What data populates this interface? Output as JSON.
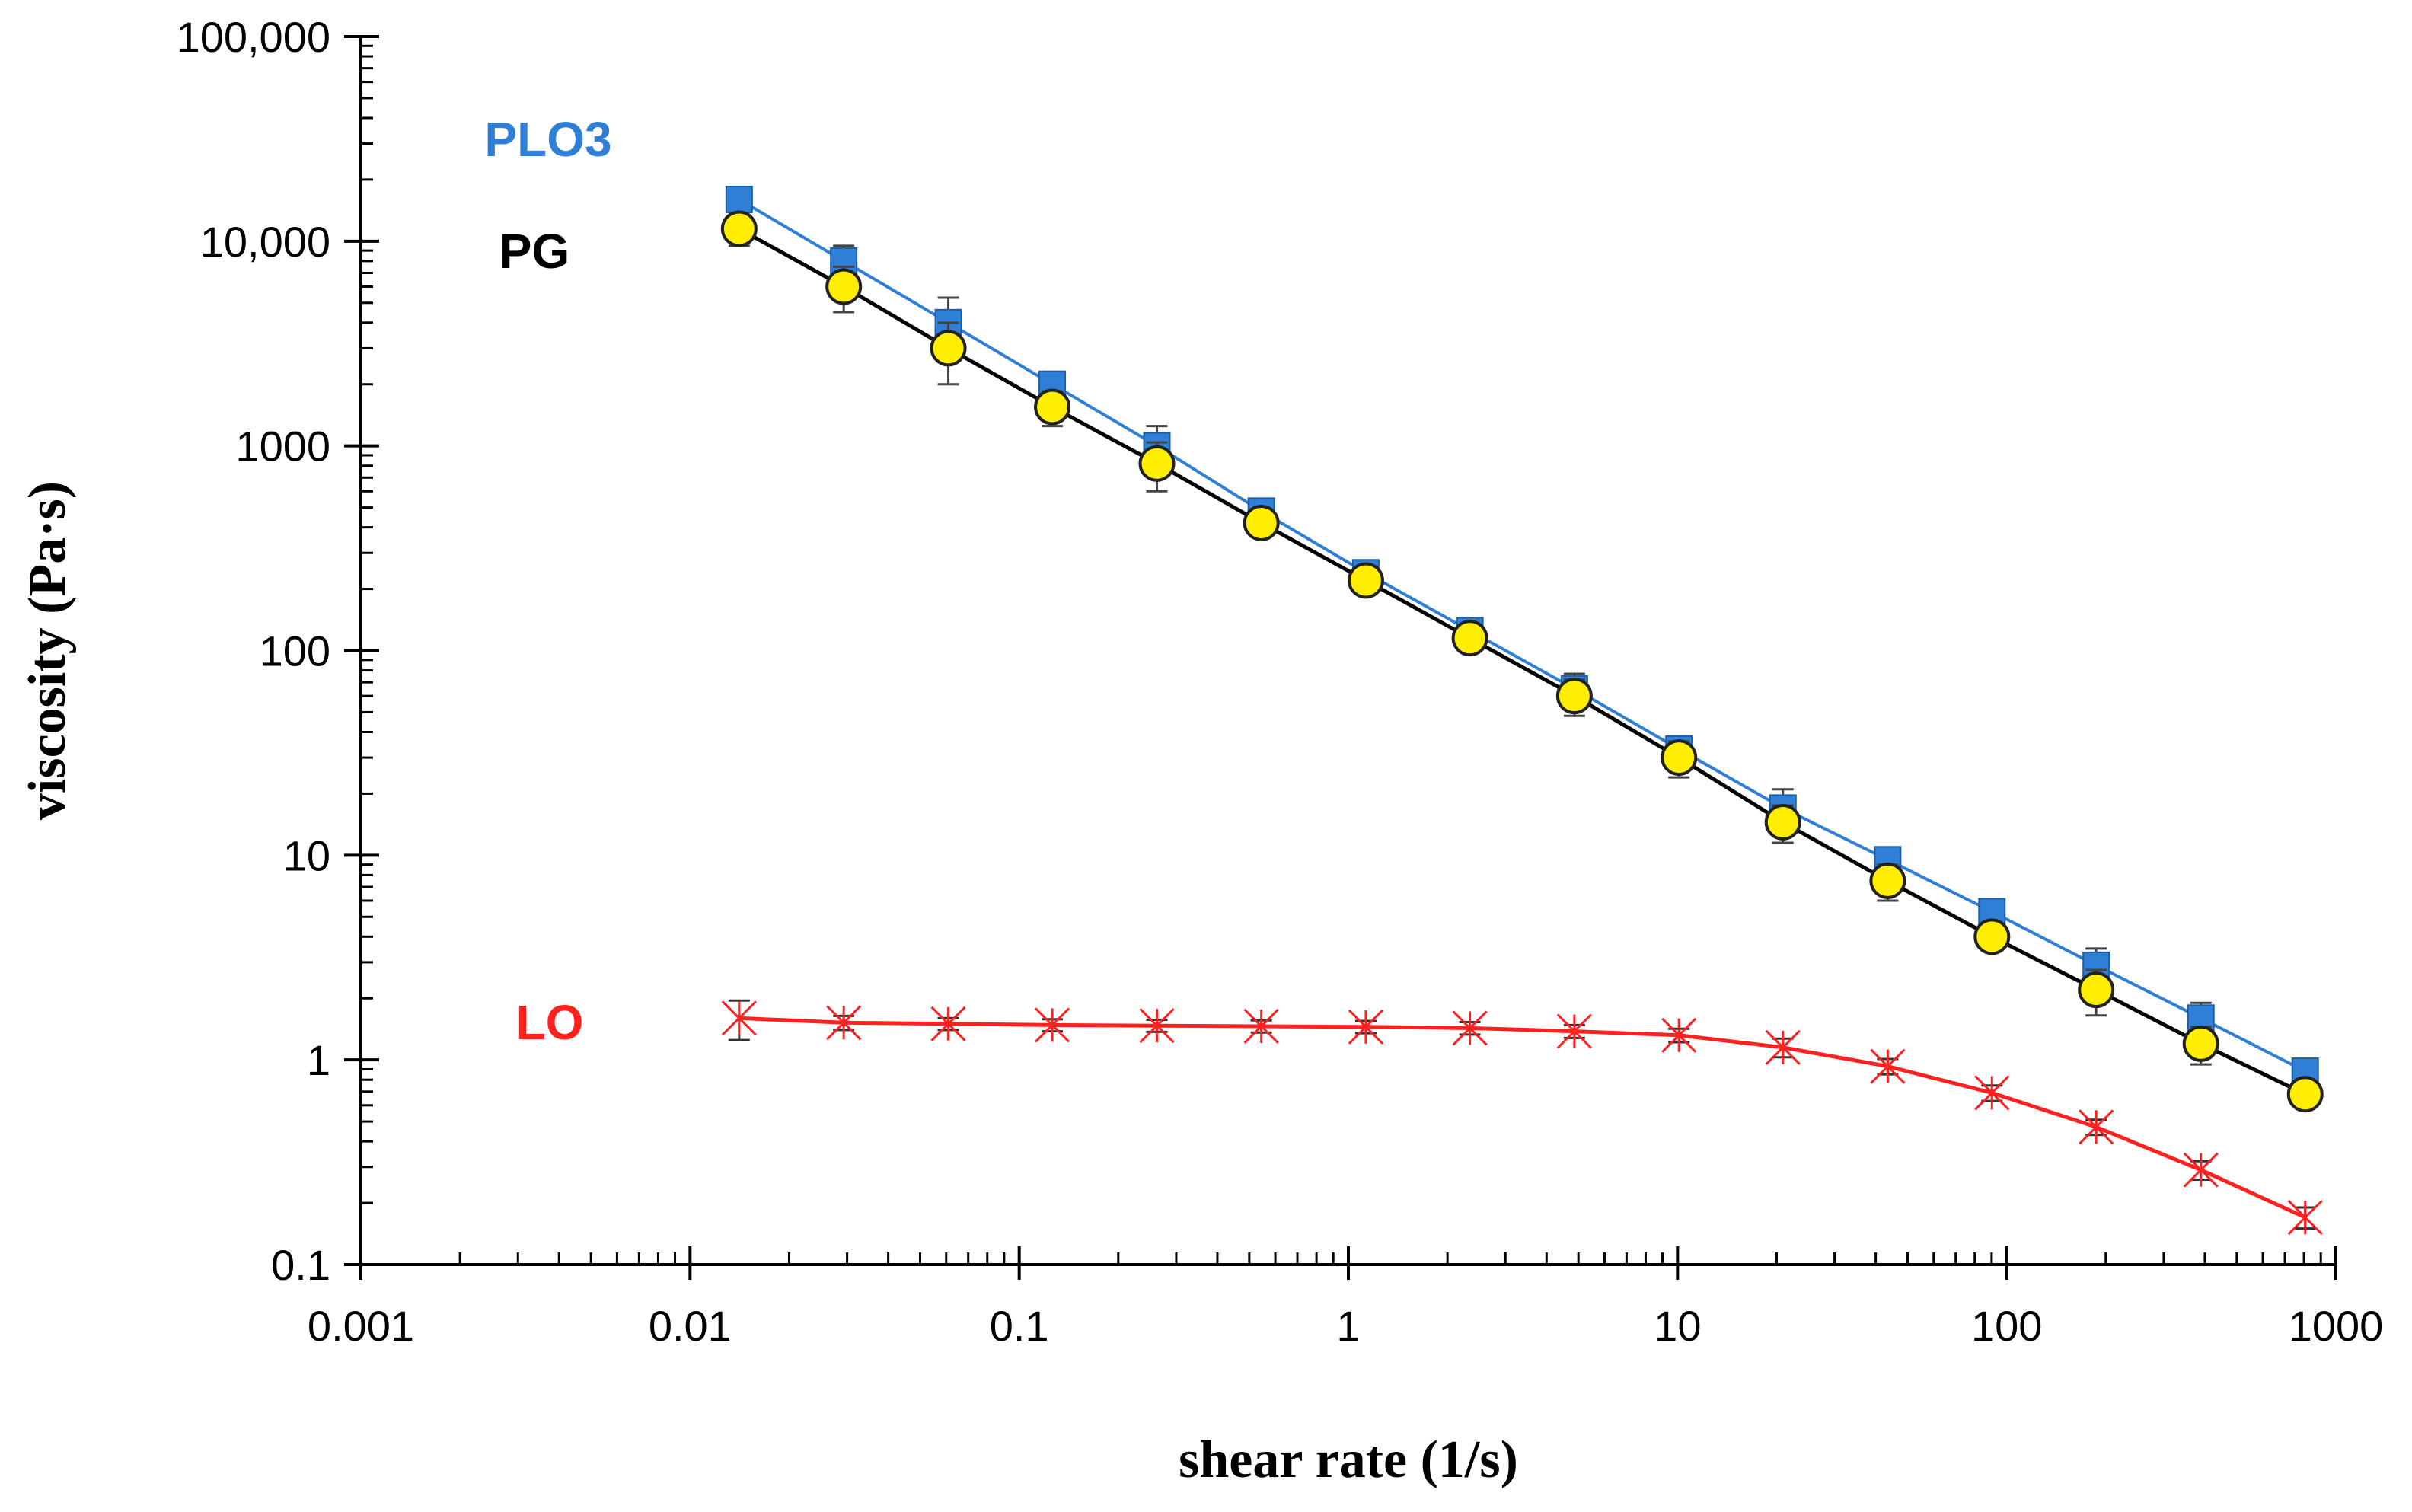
{
  "chart_data": {
    "type": "line",
    "title": "",
    "xlabel": "shear rate (1/s)",
    "ylabel": "viscosity (Pa·s)",
    "xscale": "log",
    "yscale": "log",
    "xlim": [
      0.001,
      1000
    ],
    "ylim": [
      0.1,
      100000
    ],
    "grid": false,
    "xticks": [
      {
        "value": 0.001,
        "label": "0.001"
      },
      {
        "value": 0.01,
        "label": "0.01"
      },
      {
        "value": 0.1,
        "label": "0.1"
      },
      {
        "value": 1,
        "label": "1"
      },
      {
        "value": 10,
        "label": "10"
      },
      {
        "value": 100,
        "label": "100"
      },
      {
        "value": 1000,
        "label": "1000"
      }
    ],
    "yticks": [
      {
        "value": 0.1,
        "label": "0.1"
      },
      {
        "value": 1,
        "label": "1"
      },
      {
        "value": 10,
        "label": "10"
      },
      {
        "value": 100,
        "label": "100"
      },
      {
        "value": 1000,
        "label": "1000"
      },
      {
        "value": 10000,
        "label": "10,000"
      },
      {
        "value": 100000,
        "label": "100,000"
      }
    ],
    "x": [
      0.0141,
      0.0293,
      0.0609,
      0.126,
      0.262,
      0.544,
      1.13,
      2.34,
      4.86,
      10.1,
      20.9,
      43.5,
      90.2,
      187,
      389,
      807
    ],
    "series": [
      {
        "name": "PLO3",
        "color": "#2f7fd6",
        "marker": "square",
        "values": [
          16000,
          8000,
          4000,
          2000,
          1000,
          480,
          240,
          125,
          65,
          33,
          17,
          9.5,
          5.3,
          2.9,
          1.6,
          0.88
        ],
        "errors": [
          1800,
          1500,
          1300,
          300,
          250,
          40,
          25,
          15,
          12,
          5,
          4,
          1,
          0.5,
          0.6,
          0.3,
          0.08
        ]
      },
      {
        "name": "PG",
        "color": "#000000",
        "marker": "circle",
        "marker_fill": "#ffee00",
        "values": [
          11500,
          6000,
          3000,
          1550,
          820,
          420,
          220,
          115,
          60,
          30,
          14.5,
          7.5,
          4,
          2.2,
          1.2,
          0.68
        ],
        "errors": [
          2000,
          1500,
          1000,
          300,
          220,
          40,
          25,
          15,
          12,
          6,
          3,
          1.5,
          0.5,
          0.55,
          0.25,
          0.08
        ]
      },
      {
        "name": "LO",
        "color": "#ff2020",
        "marker": "asterisk",
        "values": [
          1.6,
          1.52,
          1.5,
          1.48,
          1.47,
          1.46,
          1.45,
          1.43,
          1.38,
          1.32,
          1.15,
          0.93,
          0.69,
          0.47,
          0.29,
          0.17
        ],
        "errors": [
          0.35,
          0.12,
          0.1,
          0.1,
          0.1,
          0.1,
          0.1,
          0.1,
          0.1,
          0.1,
          0.12,
          0.08,
          0.06,
          0.04,
          0.03,
          0.02
        ]
      }
    ],
    "legend_labels": [
      {
        "text": "PLO3",
        "color": "#2f7fd6"
      },
      {
        "text": "PG",
        "color": "#000000"
      },
      {
        "text": "LO",
        "color": "#ff2020"
      }
    ]
  }
}
